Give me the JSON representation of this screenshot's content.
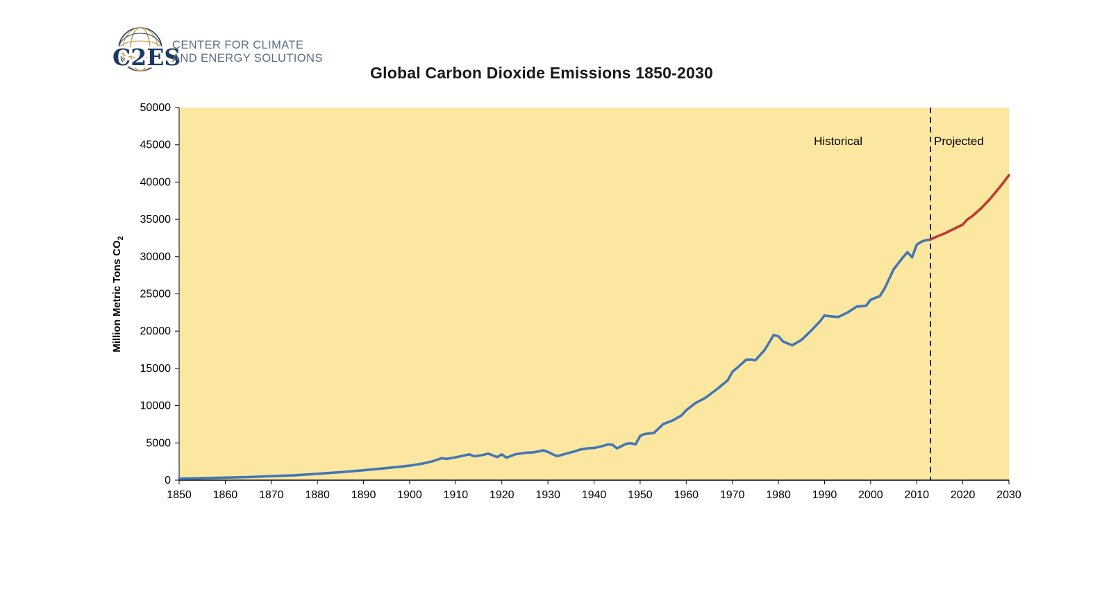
{
  "logo": {
    "acronym": "C2ES",
    "name_line1": "CENTER FOR CLIMATE",
    "name_line2": "AND ENERGY SOLUTIONS",
    "navy": "#1E3A5F",
    "orange": "#C8913B",
    "text_color": "#5A6E86"
  },
  "title": "Global Carbon Dioxide Emissions 1850-2030",
  "chart_data": {
    "type": "line",
    "title": "Global Carbon Dioxide Emissions 1850-2030",
    "xlabel": "",
    "ylabel_base": "Million Metric Tons CO",
    "ylabel_sub": "2",
    "xlim": [
      1850,
      2030
    ],
    "ylim": [
      0,
      50000
    ],
    "x_ticks": [
      1850,
      1860,
      1870,
      1880,
      1890,
      1900,
      1910,
      1920,
      1930,
      1940,
      1950,
      1960,
      1970,
      1980,
      1990,
      2000,
      2010,
      2020,
      2030
    ],
    "y_ticks": [
      0,
      5000,
      10000,
      15000,
      20000,
      25000,
      30000,
      35000,
      40000,
      45000,
      50000
    ],
    "grid": false,
    "legend_position": "none",
    "plot_bg": "#FBE7A0",
    "axis_color": "#000000",
    "divider_year": 2013,
    "annotations": {
      "historical": "Historical",
      "projected": "Projected"
    },
    "series": [
      {
        "name": "Historical",
        "color": "#4476B5",
        "x": [
          1850,
          1855,
          1860,
          1865,
          1870,
          1875,
          1880,
          1885,
          1890,
          1895,
          1900,
          1903,
          1905,
          1907,
          1908,
          1910,
          1913,
          1914,
          1916,
          1917,
          1919,
          1920,
          1921,
          1923,
          1925,
          1927,
          1929,
          1930,
          1931,
          1932,
          1934,
          1936,
          1937,
          1939,
          1940,
          1942,
          1943,
          1944,
          1945,
          1947,
          1948,
          1949,
          1950,
          1951,
          1953,
          1955,
          1957,
          1959,
          1960,
          1962,
          1964,
          1965,
          1967,
          1969,
          1970,
          1971,
          1973,
          1974,
          1975,
          1977,
          1979,
          1980,
          1981,
          1983,
          1985,
          1987,
          1989,
          1990,
          1991,
          1993,
          1995,
          1997,
          1999,
          2000,
          2002,
          2003,
          2005,
          2007,
          2008,
          2009,
          2010,
          2011,
          2012,
          2013
        ],
        "y": [
          200,
          270,
          340,
          420,
          540,
          660,
          860,
          1080,
          1330,
          1620,
          1950,
          2250,
          2540,
          2960,
          2850,
          3070,
          3460,
          3200,
          3400,
          3570,
          3100,
          3460,
          3020,
          3480,
          3670,
          3740,
          4000,
          3800,
          3480,
          3220,
          3570,
          3900,
          4120,
          4300,
          4320,
          4600,
          4800,
          4750,
          4260,
          4900,
          4950,
          4800,
          5930,
          6200,
          6340,
          7520,
          8000,
          8700,
          9390,
          10350,
          11000,
          11430,
          12380,
          13400,
          14530,
          15060,
          16160,
          16200,
          16100,
          17460,
          19500,
          19300,
          18600,
          18100,
          18830,
          20000,
          21300,
          22100,
          22000,
          21900,
          22500,
          23300,
          23400,
          24200,
          24700,
          25700,
          28300,
          29900,
          30600,
          29900,
          31600,
          32000,
          32200,
          32300
        ]
      },
      {
        "name": "Projected",
        "color": "#C03A30",
        "x": [
          2013,
          2014,
          2016,
          2018,
          2019,
          2020,
          2021,
          2022,
          2024,
          2026,
          2028,
          2030
        ],
        "y": [
          32300,
          32600,
          33100,
          33700,
          34000,
          34300,
          35000,
          35400,
          36500,
          37800,
          39300,
          40900
        ]
      }
    ]
  }
}
